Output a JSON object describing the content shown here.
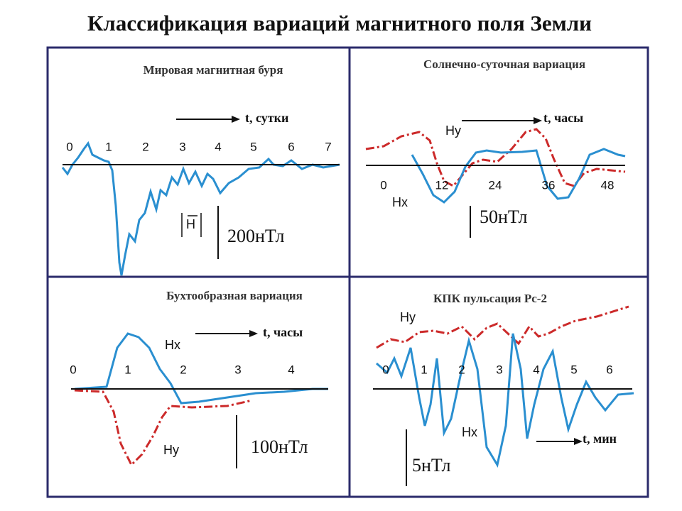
{
  "title": "Классификация вариаций магнитного поля Земли",
  "panels": [
    {
      "title": "Мировая магнитная буря",
      "axis_label": "t, сутки",
      "ticks": [
        0,
        1,
        2,
        3,
        4,
        5,
        6,
        7
      ],
      "labels": [
        "H"
      ],
      "scale": "200нТл"
    },
    {
      "title": "Солнечно-суточная вариация",
      "axis_label": "t, часы",
      "ticks": [
        0,
        12,
        24,
        36,
        48
      ],
      "labels": [
        "Hy",
        "Hx"
      ],
      "scale": "50нТл"
    },
    {
      "title": "Бухтообразная вариация",
      "axis_label": "t, часы",
      "ticks": [
        0,
        1,
        2,
        3,
        4
      ],
      "labels": [
        "Hx",
        "Hy"
      ],
      "scale": "100нТл"
    },
    {
      "title": "КПК пульсация Pc-2",
      "axis_label": "t, мин",
      "ticks": [
        0,
        1,
        2,
        3,
        4,
        5,
        6
      ],
      "labels": [
        "Hy",
        "Hx"
      ],
      "scale": "5нТл"
    }
  ]
}
